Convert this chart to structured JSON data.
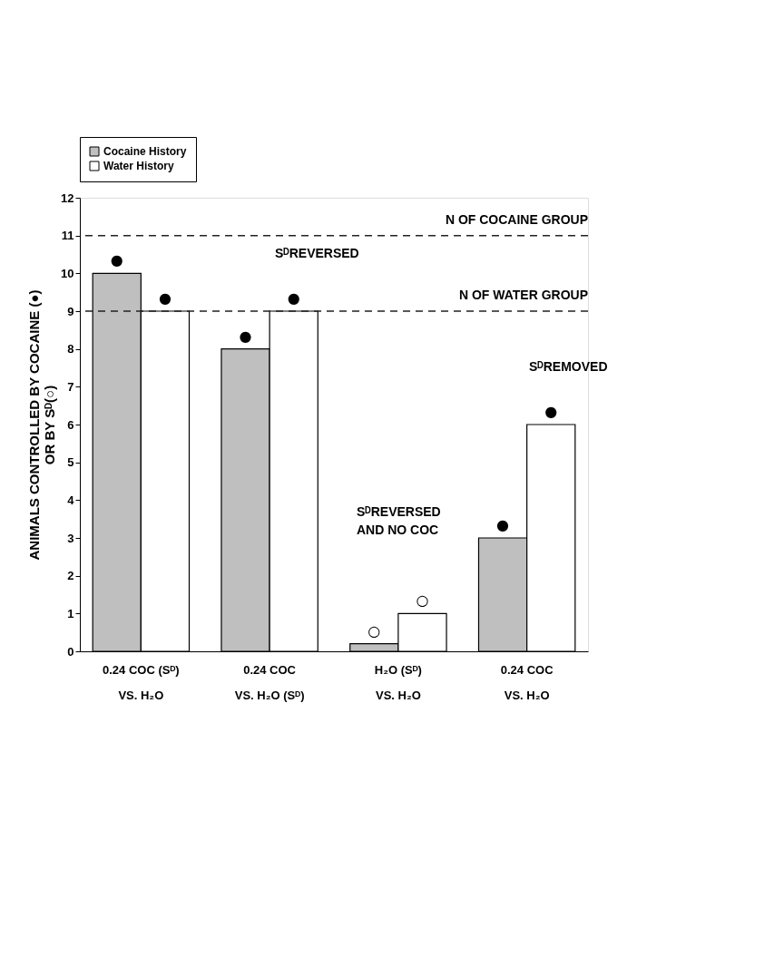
{
  "chart_data": {
    "type": "bar",
    "ylabel": "ANIMALS CONTROLLED BY COCAINE (●)\nOR BY Sᴰ(○)",
    "categories": [
      "0.24 COC (Sᴰ)\nVS. H₂O",
      "0.24 COC\nVS. H₂O (Sᴰ)",
      "H₂O (Sᴰ)\nVS. H₂O",
      "0.24 COC\nVS. H₂O"
    ],
    "series": [
      {
        "name": "Cocaine History",
        "color": "#bfbfbf",
        "values": [
          10,
          8,
          0.2,
          3
        ],
        "value_labels": [
          "●",
          "●",
          "○",
          "●"
        ]
      },
      {
        "name": "Water History",
        "color": "#ffffff",
        "values": [
          9,
          9,
          1,
          6
        ],
        "value_labels": [
          "●",
          "●",
          "○",
          "●"
        ]
      }
    ],
    "ylim": [
      0,
      12
    ],
    "yticks": [
      0,
      1,
      2,
      3,
      4,
      5,
      6,
      7,
      8,
      9,
      10,
      11,
      12
    ],
    "ref_lines": [
      {
        "axis": "y",
        "value": 11,
        "label": "N OF COCAINE GROUP",
        "line_style": "dashed",
        "color": "#222222"
      },
      {
        "axis": "y",
        "value": 9,
        "label": "N OF WATER GROUP",
        "line_style": "dashed",
        "color": "#222222"
      }
    ],
    "annotations": [
      "SᴰREVERSED",
      "SᴰREVERSED\nAND NO COC",
      "SᴰREMOVED"
    ],
    "legend": "top",
    "grid": false
  }
}
